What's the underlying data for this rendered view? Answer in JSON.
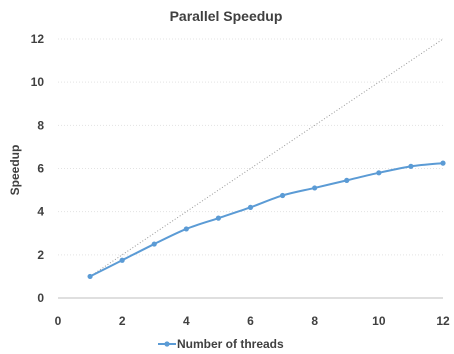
{
  "chart_data": {
    "type": "line",
    "title": "Parallel Speedup",
    "ylabel": "Speedup",
    "xlabel": "",
    "xlim": [
      0,
      12
    ],
    "ylim": [
      0,
      12
    ],
    "xticks": [
      0,
      2,
      4,
      6,
      8,
      10,
      12
    ],
    "yticks": [
      0,
      2,
      4,
      6,
      8,
      10,
      12
    ],
    "grid": true,
    "legend_position": "bottom",
    "series": [
      {
        "name": "Number of threads",
        "color": "#5b9bd5",
        "x": [
          1,
          2,
          3,
          4,
          5,
          6,
          7,
          8,
          9,
          10,
          11,
          12
        ],
        "y": [
          1.0,
          1.75,
          2.5,
          3.2,
          3.7,
          4.2,
          4.75,
          5.1,
          5.45,
          5.8,
          6.1,
          6.25
        ]
      }
    ],
    "reference_line": {
      "style": "dotted",
      "color": "#9a9a9a",
      "x": [
        1,
        12
      ],
      "y": [
        1,
        12
      ]
    }
  }
}
